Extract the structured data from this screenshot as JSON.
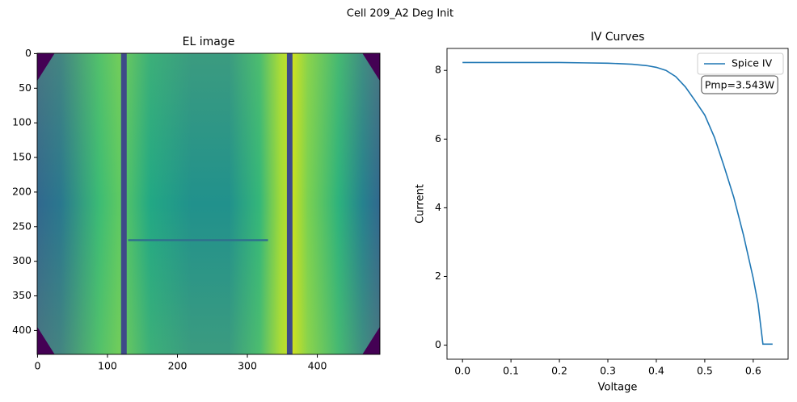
{
  "title": "Cell 209_A2 Deg Init",
  "chart_data": [
    {
      "type": "image",
      "title": "EL image",
      "xlim": [
        -0.5,
        489.5
      ],
      "ylim": [
        434.5,
        -0.5
      ],
      "xticks": [
        0,
        100,
        200,
        300,
        400
      ],
      "yticks": [
        0,
        50,
        100,
        150,
        200,
        250,
        300,
        350,
        400
      ]
    },
    {
      "type": "line",
      "title": "IV Curves",
      "xlabel": "Voltage",
      "ylabel": "Current",
      "x": [
        0,
        0.05,
        0.1,
        0.15,
        0.2,
        0.25,
        0.3,
        0.35,
        0.38,
        0.4,
        0.42,
        0.44,
        0.46,
        0.48,
        0.5,
        0.52,
        0.54,
        0.56,
        0.58,
        0.6,
        0.61,
        0.62,
        0.63,
        0.64
      ],
      "series": [
        {
          "name": "Spice IV",
          "color": "#1f77b4",
          "values": [
            8.23,
            8.23,
            8.23,
            8.23,
            8.23,
            8.22,
            8.21,
            8.18,
            8.14,
            8.09,
            8.0,
            7.82,
            7.52,
            7.12,
            6.7,
            6.05,
            5.2,
            4.3,
            3.2,
            1.95,
            1.2,
            0.03,
            0.03,
            0.03
          ]
        }
      ],
      "xlim": [
        -0.032,
        0.672
      ],
      "ylim": [
        -0.41,
        8.64
      ],
      "xticks": [
        {
          "value": 0,
          "label": "0.0"
        },
        0.1,
        0.2,
        0.3,
        0.4,
        0.5,
        0.6
      ],
      "yticks": [
        0,
        2,
        4,
        6,
        8
      ],
      "legend": "upper right",
      "annotation": "Pmp=3.543W"
    }
  ]
}
